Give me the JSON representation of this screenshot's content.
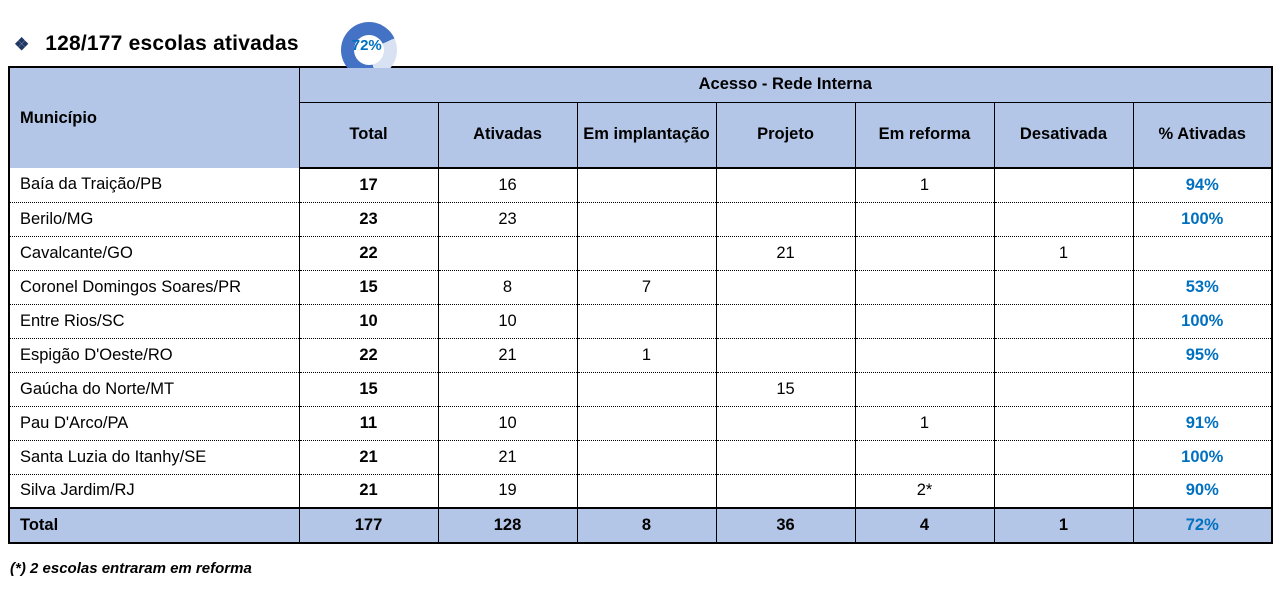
{
  "colors": {
    "header_bg": "#b4c6e7",
    "accent_blue_text": "#0070c0",
    "donut_dark": "#4472c4",
    "donut_light": "#d9e2f2",
    "bullet_color": "#1f3864"
  },
  "header": {
    "bullet": "❖",
    "title": "128/177 escolas ativadas",
    "donut": {
      "percent": 72,
      "percent_label": "72%",
      "start_angle_deg": 166
    }
  },
  "table": {
    "row_header": "Município",
    "group_header": "Acesso - Rede Interna",
    "columns": [
      "Total",
      "Ativadas",
      "Em implantação",
      "Projeto",
      "Em reforma",
      "Desativada",
      "% Ativadas"
    ],
    "rows": [
      [
        "Baía da Traição/PB",
        "17",
        "16",
        "",
        "",
        "1",
        "",
        "94%"
      ],
      [
        "Berilo/MG",
        "23",
        "23",
        "",
        "",
        "",
        "",
        "100%"
      ],
      [
        "Cavalcante/GO",
        "22",
        "",
        "",
        "21",
        "",
        "1",
        ""
      ],
      [
        "Coronel Domingos Soares/PR",
        "15",
        "8",
        "7",
        "",
        "",
        "",
        "53%"
      ],
      [
        "Entre Rios/SC",
        "10",
        "10",
        "",
        "",
        "",
        "",
        "100%"
      ],
      [
        "Espigão D'Oeste/RO",
        "22",
        "21",
        "1",
        "",
        "",
        "",
        "95%"
      ],
      [
        "Gaúcha do Norte/MT",
        "15",
        "",
        "",
        "15",
        "",
        "",
        ""
      ],
      [
        "Pau D'Arco/PA",
        "11",
        "10",
        "",
        "",
        "1",
        "",
        "91%"
      ],
      [
        "Santa Luzia do Itanhy/SE",
        "21",
        "21",
        "",
        "",
        "",
        "",
        "100%"
      ],
      [
        "Silva Jardim/RJ",
        "21",
        "19",
        "",
        "",
        "2*",
        "",
        "90%"
      ]
    ],
    "total_row": [
      "Total",
      "177",
      "128",
      "8",
      "36",
      "4",
      "1",
      "72%"
    ]
  },
  "footnote": "(*) 2 escolas entraram em reforma"
}
